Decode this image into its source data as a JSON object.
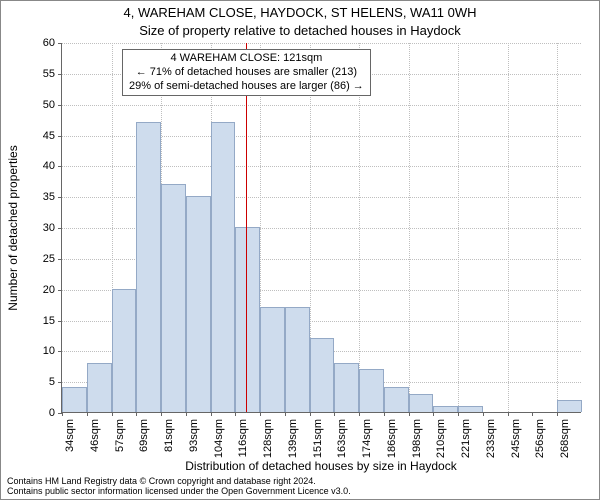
{
  "titles": {
    "line1": "4, WAREHAM CLOSE, HAYDOCK, ST HELENS, WA11 0WH",
    "line2": "Size of property relative to detached houses in Haydock"
  },
  "axes": {
    "ylabel": "Number of detached properties",
    "xlabel": "Distribution of detached houses by size in Haydock"
  },
  "chart": {
    "type": "histogram",
    "ylim": [
      0,
      60
    ],
    "ytick_step": 5,
    "bar_fill": "#cedced",
    "bar_stroke": "#94a9c6",
    "background": "#ffffff",
    "grid_color": "#bfbfbf",
    "axis_color": "#666666",
    "refline_color": "#cc0000",
    "refline_x": 121,
    "x_start": 34,
    "x_step": 11.7,
    "x_unit": "sqm",
    "categories": [
      "34sqm",
      "46sqm",
      "57sqm",
      "69sqm",
      "81sqm",
      "93sqm",
      "104sqm",
      "116sqm",
      "128sqm",
      "139sqm",
      "151sqm",
      "163sqm",
      "174sqm",
      "186sqm",
      "198sqm",
      "210sqm",
      "221sqm",
      "233sqm",
      "245sqm",
      "256sqm",
      "268sqm"
    ],
    "values": [
      4,
      8,
      20,
      47,
      37,
      35,
      47,
      30,
      17,
      17,
      12,
      8,
      7,
      4,
      3,
      1,
      1,
      0,
      0,
      0,
      2
    ]
  },
  "annotation": {
    "line1": "4 WAREHAM CLOSE: 121sqm",
    "line2": "← 71% of detached houses are smaller (213)",
    "line3": "29% of semi-detached houses are larger (86) →",
    "border_color": "#666666"
  },
  "footer": {
    "line1": "Contains HM Land Registry data © Crown copyright and database right 2024.",
    "line2": "Contains public sector information licensed under the Open Government Licence v3.0."
  }
}
